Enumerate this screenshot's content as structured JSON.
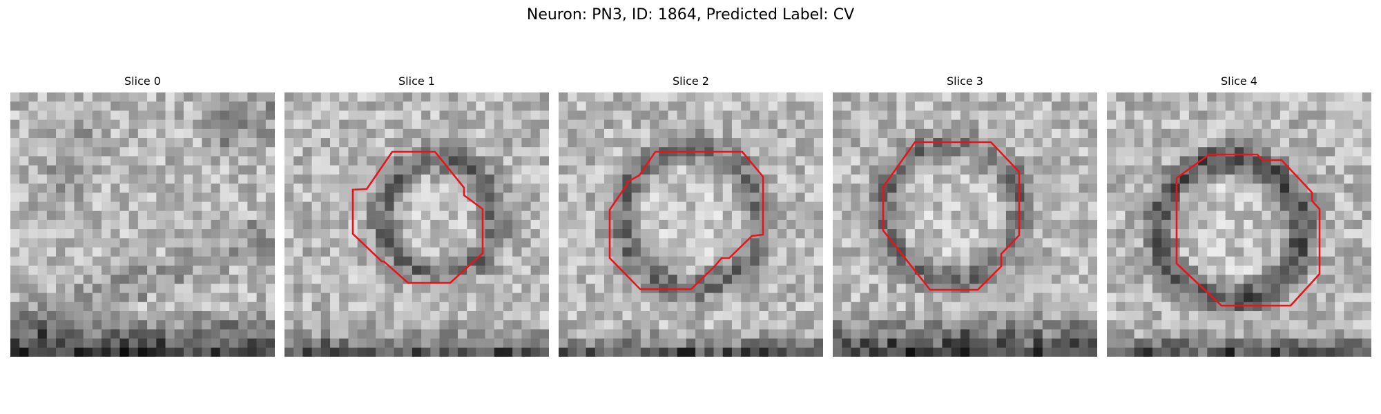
{
  "figure": {
    "title": "Neuron: PN3, ID: 1864, Predicted Label: CV"
  },
  "overlay_color": "#e8141c",
  "slices": [
    {
      "label": "Slice 0",
      "has_contour": false
    },
    {
      "label": "Slice 1",
      "has_contour": true
    },
    {
      "label": "Slice 2",
      "has_contour": true
    },
    {
      "label": "Slice 3",
      "has_contour": true
    },
    {
      "label": "Slice 4",
      "has_contour": true
    }
  ]
}
